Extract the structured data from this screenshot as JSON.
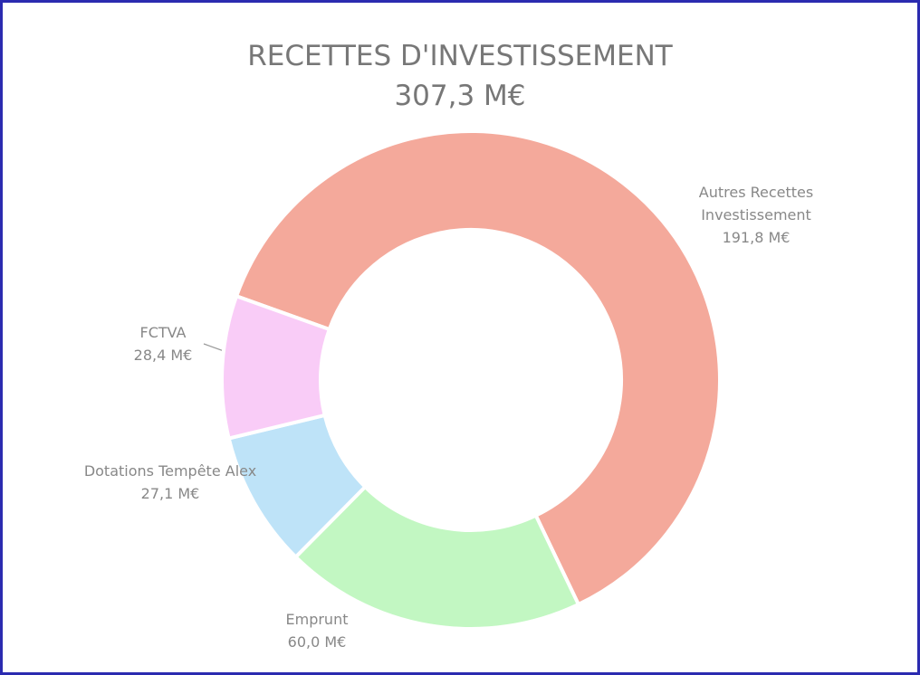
{
  "chart_data": {
    "type": "donut",
    "title": "RECETTES D'INVESTISSEMENT",
    "subtitle": "307,3 M€",
    "categories": [
      "Autres Recettes Investissement",
      "Emprunt",
      "Dotations Tempête Alex",
      "FCTVA"
    ],
    "values": [
      191.8,
      60.0,
      27.1,
      28.4
    ],
    "value_labels": [
      "191,8 M€",
      "60,0 M€",
      "27,1 M€",
      "28,4 M€"
    ],
    "colors": [
      "#f4a99b",
      "#c2f7c2",
      "#bee3f8",
      "#f9ccf7"
    ]
  }
}
